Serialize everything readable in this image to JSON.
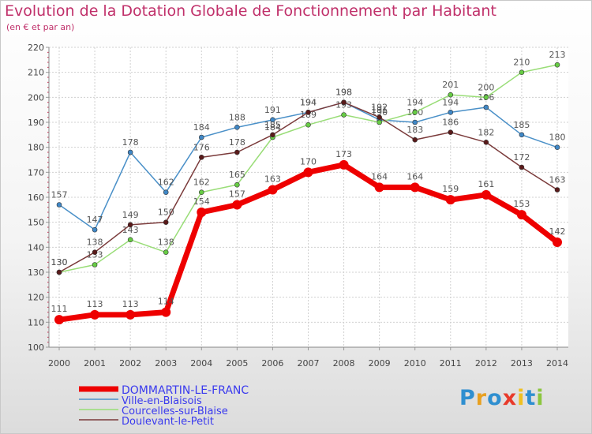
{
  "title": "Evolution de la Dotation Globale de Fonctionnement par Habitant",
  "subtitle": "(en € et par an)",
  "logo": {
    "letters": [
      "P",
      "r",
      "o",
      "x",
      "i",
      "t",
      "i"
    ],
    "colors": [
      "#2f8fd0",
      "#e8a020",
      "#2f8fd0",
      "#e83a2a",
      "#f0c020",
      "#2f8fd0",
      "#8cc63f"
    ]
  },
  "chart_data": {
    "type": "line",
    "x": [
      "2000",
      "2001",
      "2002",
      "2003",
      "2004",
      "2005",
      "2006",
      "2007",
      "2008",
      "2009",
      "2010",
      "2011",
      "2012",
      "2013",
      "2014"
    ],
    "yticks": [
      100,
      110,
      120,
      130,
      140,
      150,
      160,
      170,
      180,
      190,
      200,
      210,
      220
    ],
    "ylim": [
      100,
      220
    ],
    "grid": true,
    "legend_position": "bottom-left",
    "series": [
      {
        "name": "Ville-en-Blaisois",
        "color": "#4a90c8",
        "marker": "#3f87c6",
        "label_color": "#555555",
        "values": [
          157,
          147,
          178,
          162,
          184,
          188,
          191,
          194,
          198,
          191,
          190,
          194,
          196,
          185,
          180
        ]
      },
      {
        "name": "Courcelles-sur-Blaise",
        "color": "#99dd77",
        "marker": "#66cc44",
        "label_color": "#555555",
        "values": [
          130,
          133,
          143,
          138,
          162,
          165,
          184,
          189,
          193,
          190,
          194,
          201,
          200,
          210,
          213
        ]
      },
      {
        "name": "Doulevant-le-Petit",
        "color": "#7a3a3a",
        "marker": "#5a1a1a",
        "label_color": "#555555",
        "values": [
          130,
          138,
          149,
          150,
          176,
          178,
          185,
          194,
          198,
          192,
          183,
          186,
          182,
          172,
          163
        ]
      },
      {
        "name": "DOMMARTIN-LE-FRANC",
        "color": "#ee0000",
        "marker": "#ee0000",
        "label_color": "#555555",
        "values": [
          111,
          113,
          113,
          114,
          154,
          157,
          163,
          170,
          173,
          164,
          164,
          159,
          161,
          153,
          142
        ]
      }
    ],
    "legend_order": [
      "DOMMARTIN-LE-FRANC",
      "Ville-en-Blaisois",
      "Courcelles-sur-Blaise",
      "Doulevant-le-Petit"
    ],
    "legend_text_color": "#3a3aee"
  }
}
